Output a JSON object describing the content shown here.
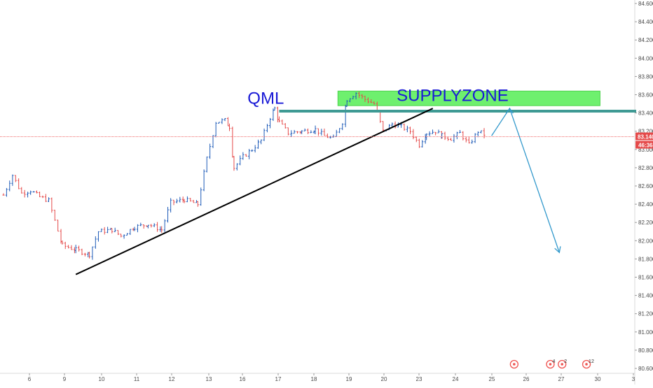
{
  "chart_data": {
    "type": "candlestick",
    "x_ticks": [
      "6",
      "9",
      "10",
      "11",
      "12",
      "13",
      "16",
      "17",
      "18",
      "19",
      "20",
      "23",
      "24",
      "25",
      "26",
      "27",
      "30",
      "3"
    ],
    "y_ticks": [
      "84.600",
      "84.400",
      "84.200",
      "84.000",
      "83.800",
      "83.600",
      "83.400",
      "83.200",
      "83.000",
      "82.800",
      "82.600",
      "82.400",
      "82.200",
      "82.000",
      "81.800",
      "81.600",
      "81.400",
      "81.200",
      "81.000",
      "80.800",
      "80.600"
    ],
    "ylim": [
      80.6,
      84.6
    ],
    "current_price": "83.140",
    "countdown": "46:36",
    "price_path": [
      [
        0,
        82.5
      ],
      [
        1.0,
        82.72
      ],
      [
        2.0,
        82.52
      ],
      [
        3.0,
        82.55
      ],
      [
        4.0,
        82.48
      ],
      [
        5.0,
        82.44
      ],
      [
        6.5,
        81.95
      ],
      [
        8.0,
        81.9
      ],
      [
        9.5,
        81.85
      ],
      [
        10.5,
        82.1
      ],
      [
        12.0,
        82.12
      ],
      [
        13.0,
        82.05
      ],
      [
        14.5,
        82.15
      ],
      [
        16.0,
        82.18
      ],
      [
        17.5,
        82.12
      ],
      [
        18.5,
        82.42
      ],
      [
        20.0,
        82.45
      ],
      [
        21.5,
        82.4
      ],
      [
        22.5,
        82.9
      ],
      [
        23.5,
        83.3
      ],
      [
        24.5,
        83.32
      ],
      [
        25.0,
        83.25
      ],
      [
        25.5,
        82.8
      ],
      [
        26.5,
        82.92
      ],
      [
        27.5,
        83.0
      ],
      [
        28.5,
        83.1
      ],
      [
        29.5,
        83.35
      ],
      [
        30.0,
        83.45
      ],
      [
        30.5,
        83.3
      ],
      [
        31.5,
        83.18
      ],
      [
        33.0,
        83.2
      ],
      [
        34.5,
        83.22
      ],
      [
        35.5,
        83.15
      ],
      [
        36.5,
        83.12
      ],
      [
        37.5,
        83.3
      ],
      [
        38.0,
        83.55
      ],
      [
        39.0,
        83.62
      ],
      [
        40.0,
        83.55
      ],
      [
        41.0,
        83.5
      ],
      [
        42.0,
        83.2
      ],
      [
        43.0,
        83.28
      ],
      [
        44.0,
        83.25
      ],
      [
        45.0,
        83.2
      ],
      [
        46.0,
        83.05
      ],
      [
        46.8,
        83.18
      ],
      [
        47.8,
        83.2
      ],
      [
        48.5,
        83.15
      ],
      [
        49.5,
        83.12
      ],
      [
        50.5,
        83.18
      ],
      [
        51.5,
        83.05
      ],
      [
        52.5,
        83.2
      ],
      [
        53.5,
        83.15
      ]
    ],
    "annotations": {
      "qml_label": "QML",
      "supply_label": "SUPPLYZONE",
      "supply_zone": {
        "x_start": 37.0,
        "x_end": 66.0,
        "y_low": 83.48,
        "y_high": 83.64,
        "color": "#6ef06e"
      },
      "qml_line": {
        "x_start": 30.5,
        "x_end": 70.0,
        "y": 83.42,
        "color": "#3f9a94"
      },
      "trendline": {
        "points": [
          [
            8.0,
            81.63
          ],
          [
            47.5,
            83.45
          ]
        ],
        "color": "#000000"
      },
      "projection": {
        "points": [
          [
            54.0,
            83.15
          ],
          [
            56.0,
            83.45
          ],
          [
            61.5,
            81.87
          ]
        ],
        "color": "#3399cc"
      }
    },
    "events": [
      {
        "x": 56.5,
        "count": ""
      },
      {
        "x": 60.5,
        "count": "4"
      },
      {
        "x": 61.8,
        "count": "2"
      },
      {
        "x": 64.5,
        "count": "12"
      }
    ],
    "colors": {
      "up": "#1e5bb8",
      "down": "#e54a4a",
      "price_line": "#ef6b6b",
      "price_tag": "#e54a4a",
      "event": "#ef5350"
    }
  }
}
